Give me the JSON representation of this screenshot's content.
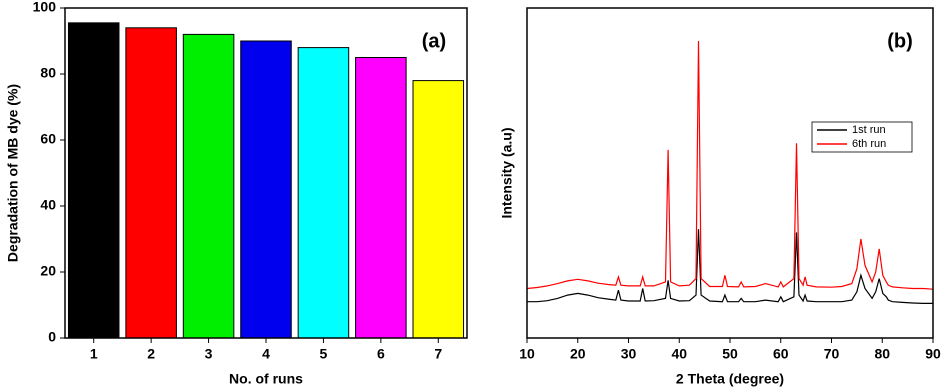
{
  "chart_data": [
    {
      "type": "bar",
      "annotation": "(a)",
      "x_label": "No. of runs",
      "y_label": "Degradation of MB dye (%)",
      "categories": [
        "1",
        "2",
        "3",
        "4",
        "5",
        "6",
        "7"
      ],
      "values": [
        95.5,
        94,
        92,
        90,
        88,
        85,
        78
      ],
      "colors": [
        "#000000",
        "#ff0000",
        "#00ee00",
        "#0000ee",
        "#00ffff",
        "#ff00ff",
        "#ffff00"
      ],
      "ylim": [
        0,
        100
      ],
      "yticks": [
        0,
        20,
        40,
        60,
        80,
        100
      ]
    },
    {
      "type": "line",
      "annotation": "(b)",
      "x_label": "2 Theta (degree)",
      "y_label": "Intensity (a.u)",
      "legend": "upper right",
      "x": [
        10,
        12,
        14,
        16,
        18,
        20,
        22,
        24,
        26,
        27.5,
        28,
        28.5,
        30,
        32.3,
        32.8,
        33.3,
        35,
        37.3,
        37.8,
        38.3,
        40,
        42,
        43.3,
        43.8,
        44.3,
        46,
        48.5,
        49,
        49.5,
        51.7,
        52.2,
        52.7,
        55,
        57,
        59.5,
        60,
        60.5,
        62.6,
        63.1,
        63.6,
        64.4,
        64.8,
        65.2,
        67,
        70,
        72,
        74,
        75,
        75.8,
        76.6,
        78,
        78.7,
        79.4,
        80.1,
        80.8,
        81.2,
        82,
        84,
        86,
        88,
        90
      ],
      "series": [
        {
          "name": "1st run",
          "color": "#000000",
          "values": [
            11,
            11,
            11.3,
            12,
            13,
            13.5,
            13,
            12.2,
            11.8,
            11.5,
            14.5,
            11.5,
            11.2,
            11.2,
            15,
            11.2,
            11.3,
            12,
            17.5,
            12,
            11.2,
            11.3,
            13,
            33,
            13,
            11.2,
            11,
            13,
            11,
            11,
            12,
            11,
            11,
            11.5,
            11,
            12.5,
            11,
            12.5,
            32,
            13,
            11.2,
            13,
            11.2,
            11,
            11,
            11,
            11.5,
            14,
            19,
            15,
            12,
            14,
            18,
            13.5,
            12.5,
            11.5,
            11,
            10.8,
            10.6,
            10.5,
            10.5
          ]
        },
        {
          "name": "6th run",
          "color": "#ff0000",
          "values": [
            15,
            15.3,
            15.8,
            16.5,
            17.3,
            17.8,
            17.3,
            16.6,
            16.2,
            16,
            18.5,
            16,
            15.8,
            15.8,
            18.5,
            15.8,
            15.8,
            17,
            57,
            17,
            15.8,
            16,
            18,
            90,
            18,
            15.6,
            15.6,
            19,
            15.6,
            15.5,
            17,
            15.5,
            15.6,
            16.5,
            15.5,
            17,
            15.5,
            18,
            59,
            18,
            16,
            18.5,
            16,
            15.5,
            15.4,
            15.6,
            16.5,
            21,
            30,
            22,
            17,
            20,
            27,
            19,
            17,
            16,
            15.5,
            15.2,
            15,
            15,
            14.8
          ]
        }
      ],
      "xlim": [
        10,
        90
      ],
      "xticks": [
        10,
        20,
        30,
        40,
        50,
        60,
        70,
        80,
        90
      ],
      "ylim": [
        0,
        100
      ]
    }
  ]
}
